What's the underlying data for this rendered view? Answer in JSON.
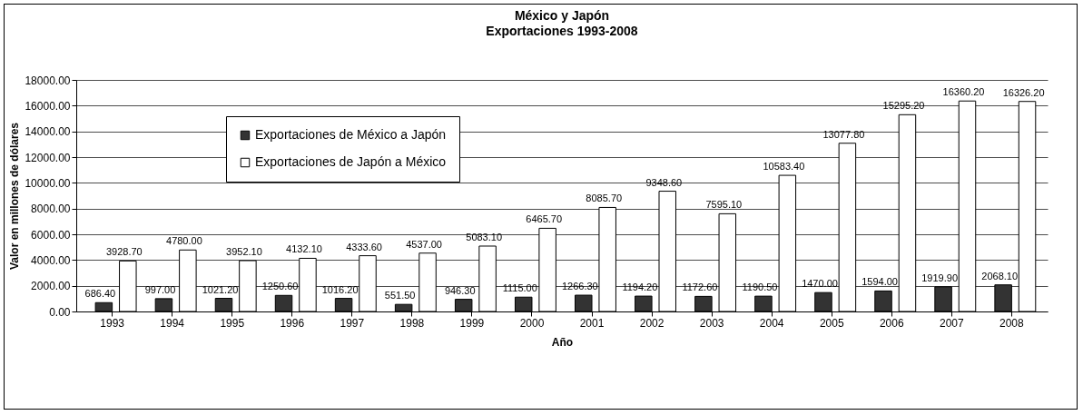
{
  "chart_data": {
    "type": "bar",
    "title": "México y Japón",
    "subtitle": "Exportaciones 1993-2008",
    "xlabel": "Año",
    "ylabel": "Valor en millones de dólares",
    "categories": [
      "1993",
      "1994",
      "1995",
      "1996",
      "1997",
      "1998",
      "1999",
      "2000",
      "2001",
      "2002",
      "2003",
      "2004",
      "2005",
      "2006",
      "2007",
      "2008"
    ],
    "series": [
      {
        "name": "Exportaciones de México a Japón",
        "color": "#333333",
        "values": [
          686.4,
          997.0,
          1021.2,
          1250.6,
          1016.2,
          551.5,
          946.3,
          1115.0,
          1266.3,
          1194.2,
          1172.6,
          1190.5,
          1470.0,
          1594.0,
          1919.9,
          2068.1
        ],
        "value_labels": [
          "686.40",
          "997.00",
          "1021.20",
          "1250.60",
          "1016.20",
          "551.50",
          "946.30",
          "1115.00",
          "1266.30",
          "1194.20",
          "1172.60",
          "1190.50",
          "1470.00",
          "1594.00",
          "1919.90",
          "2068.10"
        ]
      },
      {
        "name": "Exportaciones de Japón a México",
        "color": "#ffffff",
        "values": [
          3928.7,
          4780.0,
          3952.1,
          4132.1,
          4333.6,
          4537.0,
          5083.1,
          6465.7,
          8085.7,
          9348.6,
          7595.1,
          10583.4,
          13077.8,
          15295.2,
          16360.2,
          16326.2
        ],
        "value_labels": [
          "3928.70",
          "4780.00",
          "3952.10",
          "4132.10",
          "4333.60",
          "4537.00",
          "5083.10",
          "6465.70",
          "8085.70",
          "9348.60",
          "7595.10",
          "10583.40",
          "13077.80",
          "15295.20",
          "16360.20",
          "16326.20"
        ]
      }
    ],
    "ylim": [
      0,
      18000
    ],
    "yticks": [
      {
        "value": 0,
        "label": "0.00"
      },
      {
        "value": 2000,
        "label": "2000.00"
      },
      {
        "value": 4000,
        "label": "4000.00"
      },
      {
        "value": 6000,
        "label": "6000.00"
      },
      {
        "value": 8000,
        "label": "8000.00"
      },
      {
        "value": 10000,
        "label": "10000.00"
      },
      {
        "value": 12000,
        "label": "12000.00"
      },
      {
        "value": 14000,
        "label": "14000.00"
      },
      {
        "value": 16000,
        "label": "16000.00"
      },
      {
        "value": 18000,
        "label": "18000.00"
      }
    ],
    "grid": "y",
    "legend": "top left"
  }
}
